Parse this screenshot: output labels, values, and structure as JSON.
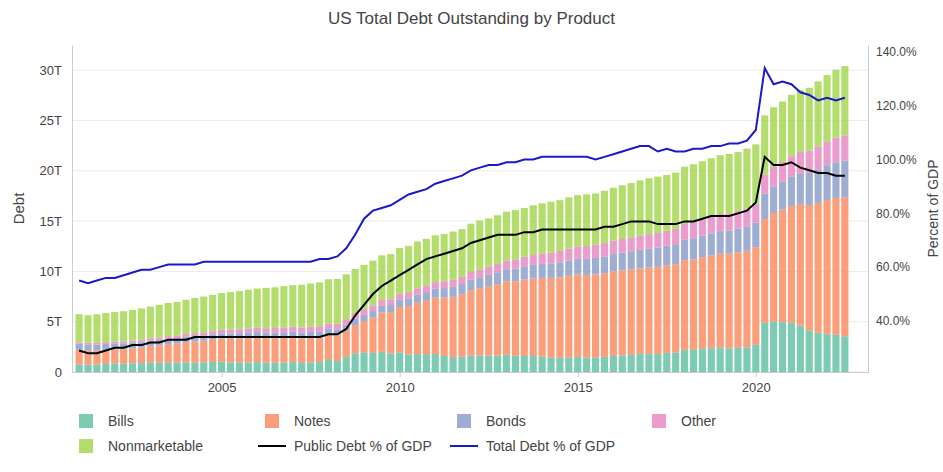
{
  "chart_data": {
    "type": "bar",
    "title": "US Total Debt Outstanding by Product",
    "y_label": "Debt",
    "y2_label": "Percent of GDP",
    "stacked": true,
    "grid": true,
    "legend": "bottom",
    "x": [
      2001,
      2001.25,
      2001.5,
      2001.75,
      2002,
      2002.25,
      2002.5,
      2002.75,
      2003,
      2003.25,
      2003.5,
      2003.75,
      2004,
      2004.25,
      2004.5,
      2004.75,
      2005,
      2005.25,
      2005.5,
      2005.75,
      2006,
      2006.25,
      2006.5,
      2006.75,
      2007,
      2007.25,
      2007.5,
      2007.75,
      2008,
      2008.25,
      2008.5,
      2008.75,
      2009,
      2009.25,
      2009.5,
      2009.75,
      2010,
      2010.25,
      2010.5,
      2010.75,
      2011,
      2011.25,
      2011.5,
      2011.75,
      2012,
      2012.25,
      2012.5,
      2012.75,
      2013,
      2013.25,
      2013.5,
      2013.75,
      2014,
      2014.25,
      2014.5,
      2014.75,
      2015,
      2015.25,
      2015.5,
      2015.75,
      2016,
      2016.25,
      2016.5,
      2016.75,
      2017,
      2017.25,
      2017.5,
      2017.75,
      2018,
      2018.25,
      2018.5,
      2018.75,
      2019,
      2019.25,
      2019.5,
      2019.75,
      2020,
      2020.25,
      2020.5,
      2020.75,
      2021,
      2021.25,
      2021.5,
      2021.75,
      2022,
      2022.25,
      2022.5
    ],
    "xlim": [
      2000.8,
      2023.15
    ],
    "xticks": [
      2005,
      2010,
      2015,
      2020
    ],
    "ylim": [
      0,
      32.5
    ],
    "yticks": [
      0,
      {
        "value": 5,
        "label": "5T"
      },
      {
        "value": 10,
        "label": "10T"
      },
      {
        "value": 15,
        "label": "15T"
      },
      {
        "value": 20,
        "label": "20T"
      },
      {
        "value": 25,
        "label": "25T"
      },
      {
        "value": 30,
        "label": "30T"
      }
    ],
    "y2lim": [
      21,
      142.6
    ],
    "y2ticks": [
      {
        "value": 40,
        "label": "40.0%"
      },
      {
        "value": 60,
        "label": "60.0%"
      },
      {
        "value": 80,
        "label": "80.0%"
      },
      {
        "value": 100,
        "label": "100.0%"
      },
      {
        "value": 120,
        "label": "120.0%"
      },
      {
        "value": 140,
        "label": "140.0%"
      }
    ],
    "series": [
      {
        "name": "Bills",
        "type": "bar",
        "color": "#66c2a5",
        "values": [
          0.75,
          0.72,
          0.73,
          0.8,
          0.85,
          0.82,
          0.85,
          0.89,
          0.92,
          0.9,
          0.92,
          0.93,
          0.97,
          0.94,
          0.96,
          1.0,
          1.02,
          0.96,
          0.94,
          0.96,
          0.99,
          0.93,
          0.91,
          0.94,
          0.98,
          0.9,
          0.96,
          1.0,
          1.2,
          1.1,
          1.5,
          1.86,
          1.95,
          1.9,
          2.0,
          1.85,
          1.95,
          1.75,
          1.78,
          1.78,
          1.78,
          1.6,
          1.48,
          1.52,
          1.62,
          1.62,
          1.62,
          1.63,
          1.7,
          1.62,
          1.6,
          1.59,
          1.55,
          1.45,
          1.41,
          1.46,
          1.5,
          1.45,
          1.45,
          1.51,
          1.6,
          1.65,
          1.7,
          1.8,
          1.8,
          1.8,
          1.9,
          1.95,
          2.2,
          2.2,
          2.3,
          2.37,
          2.45,
          2.35,
          2.4,
          2.45,
          2.7,
          4.9,
          5.0,
          4.95,
          4.9,
          4.6,
          4.1,
          3.9,
          3.8,
          3.7,
          3.55
        ]
      },
      {
        "name": "Notes",
        "type": "bar",
        "color": "#fc8d62",
        "values": [
          1.45,
          1.42,
          1.4,
          1.4,
          1.4,
          1.45,
          1.5,
          1.55,
          1.65,
          1.75,
          1.85,
          1.9,
          2.0,
          2.1,
          2.15,
          2.2,
          2.3,
          2.35,
          2.4,
          2.45,
          2.45,
          2.45,
          2.45,
          2.45,
          2.45,
          2.45,
          2.45,
          2.45,
          2.5,
          2.55,
          2.6,
          2.8,
          3.1,
          3.5,
          3.9,
          4.1,
          4.5,
          4.8,
          5.1,
          5.3,
          5.6,
          5.8,
          6.0,
          6.2,
          6.5,
          6.7,
          6.9,
          7.1,
          7.3,
          7.4,
          7.6,
          7.7,
          7.8,
          7.9,
          8.0,
          8.1,
          8.2,
          8.2,
          8.25,
          8.3,
          8.4,
          8.45,
          8.5,
          8.5,
          8.6,
          8.65,
          8.7,
          8.75,
          8.9,
          9.0,
          9.1,
          9.2,
          9.3,
          9.4,
          9.5,
          9.6,
          9.7,
          10.3,
          10.8,
          11.2,
          11.6,
          12.1,
          12.5,
          12.9,
          13.3,
          13.6,
          13.8
        ]
      },
      {
        "name": "Bonds",
        "type": "bar",
        "color": "#8da0cb",
        "values": [
          0.6,
          0.6,
          0.59,
          0.59,
          0.58,
          0.58,
          0.57,
          0.57,
          0.56,
          0.55,
          0.55,
          0.54,
          0.54,
          0.53,
          0.53,
          0.53,
          0.53,
          0.52,
          0.52,
          0.52,
          0.53,
          0.54,
          0.55,
          0.56,
          0.57,
          0.57,
          0.58,
          0.58,
          0.59,
          0.6,
          0.61,
          0.62,
          0.64,
          0.66,
          0.68,
          0.7,
          0.74,
          0.78,
          0.82,
          0.86,
          0.9,
          0.94,
          0.98,
          1.02,
          1.06,
          1.1,
          1.14,
          1.18,
          1.22,
          1.27,
          1.31,
          1.35,
          1.4,
          1.44,
          1.48,
          1.52,
          1.56,
          1.6,
          1.64,
          1.68,
          1.72,
          1.76,
          1.8,
          1.84,
          1.88,
          1.92,
          1.96,
          2.0,
          2.05,
          2.1,
          2.15,
          2.2,
          2.25,
          2.3,
          2.35,
          2.4,
          2.45,
          2.55,
          2.65,
          2.75,
          2.9,
          3.05,
          3.2,
          3.35,
          3.45,
          3.55,
          3.65
        ]
      },
      {
        "name": "Other",
        "type": "bar",
        "color": "#e78ac3",
        "values": [
          0.15,
          0.16,
          0.17,
          0.18,
          0.18,
          0.19,
          0.2,
          0.21,
          0.22,
          0.23,
          0.24,
          0.25,
          0.27,
          0.29,
          0.31,
          0.33,
          0.35,
          0.37,
          0.39,
          0.4,
          0.42,
          0.44,
          0.46,
          0.48,
          0.49,
          0.5,
          0.51,
          0.52,
          0.53,
          0.54,
          0.55,
          0.56,
          0.56,
          0.56,
          0.57,
          0.57,
          0.58,
          0.6,
          0.62,
          0.64,
          0.66,
          0.68,
          0.7,
          0.72,
          0.76,
          0.78,
          0.8,
          0.82,
          0.86,
          0.9,
          0.94,
          0.98,
          1.02,
          1.08,
          1.14,
          1.18,
          1.22,
          1.26,
          1.3,
          1.32,
          1.34,
          1.36,
          1.38,
          1.4,
          1.42,
          1.45,
          1.48,
          1.52,
          1.56,
          1.6,
          1.64,
          1.68,
          1.7,
          1.72,
          1.76,
          1.8,
          1.82,
          1.86,
          1.92,
          1.98,
          2.05,
          2.12,
          2.2,
          2.28,
          2.36,
          2.44,
          2.5
        ]
      },
      {
        "name": "Nonmarketable",
        "type": "bar",
        "color": "#a6d854",
        "values": [
          2.8,
          2.75,
          2.85,
          2.9,
          2.95,
          3.0,
          3.05,
          3.1,
          3.15,
          3.25,
          3.3,
          3.35,
          3.4,
          3.5,
          3.55,
          3.6,
          3.65,
          3.75,
          3.8,
          3.85,
          3.9,
          4.0,
          4.05,
          4.1,
          4.15,
          4.25,
          4.3,
          4.35,
          4.4,
          4.45,
          4.45,
          4.4,
          4.4,
          4.45,
          4.45,
          4.5,
          4.55,
          4.6,
          4.65,
          4.65,
          4.65,
          4.7,
          4.8,
          4.75,
          4.8,
          4.85,
          4.8,
          4.85,
          4.85,
          4.9,
          4.85,
          4.95,
          5.0,
          5.05,
          5.05,
          5.1,
          5.1,
          5.15,
          5.1,
          5.2,
          5.25,
          5.35,
          5.4,
          5.5,
          5.55,
          5.6,
          5.55,
          5.6,
          5.7,
          5.75,
          5.75,
          5.8,
          5.85,
          5.9,
          5.85,
          5.95,
          5.95,
          5.9,
          5.95,
          6.0,
          6.1,
          6.15,
          6.25,
          6.45,
          6.6,
          6.75,
          6.9
        ]
      },
      {
        "name": "Public Debt % of GDP",
        "type": "line",
        "axis": "y2",
        "color": "#000000",
        "values": [
          29,
          28,
          28,
          29,
          30,
          30,
          31,
          31,
          32,
          32,
          33,
          33,
          33,
          34,
          34,
          34,
          34,
          34,
          34,
          34,
          34,
          34,
          34,
          34,
          34,
          34,
          34,
          34,
          35,
          35,
          37,
          42,
          46,
          50,
          53,
          55,
          57,
          59,
          61,
          63,
          64,
          65,
          66,
          67,
          69,
          70,
          71,
          72,
          72,
          72,
          73,
          73,
          74,
          74,
          74,
          74,
          74,
          74,
          74,
          75,
          75,
          76,
          77,
          77,
          77,
          76,
          76,
          76,
          77,
          77,
          78,
          79,
          79,
          79,
          80,
          81,
          84,
          101,
          98,
          98,
          99,
          97,
          96,
          95,
          95,
          94,
          94
        ]
      },
      {
        "name": "Total Debt % of GDP",
        "type": "line",
        "axis": "y2",
        "color": "#1a1ac8",
        "values": [
          55,
          54,
          55,
          56,
          56,
          57,
          58,
          59,
          59,
          60,
          61,
          61,
          61,
          61,
          62,
          62,
          62,
          62,
          62,
          62,
          62,
          62,
          62,
          62,
          62,
          62,
          62,
          63,
          63,
          64,
          67,
          72,
          78,
          81,
          82,
          83,
          85,
          87,
          88,
          89,
          91,
          92,
          93,
          94,
          96,
          97,
          98,
          98,
          99,
          99,
          100,
          100,
          101,
          101,
          101,
          101,
          101,
          101,
          100,
          101,
          102,
          103,
          104,
          105,
          105,
          103,
          104,
          103,
          103,
          104,
          104,
          105,
          105,
          106,
          106,
          107,
          111,
          134,
          128,
          129,
          128,
          125,
          124,
          122,
          123,
          122,
          123
        ]
      }
    ]
  }
}
